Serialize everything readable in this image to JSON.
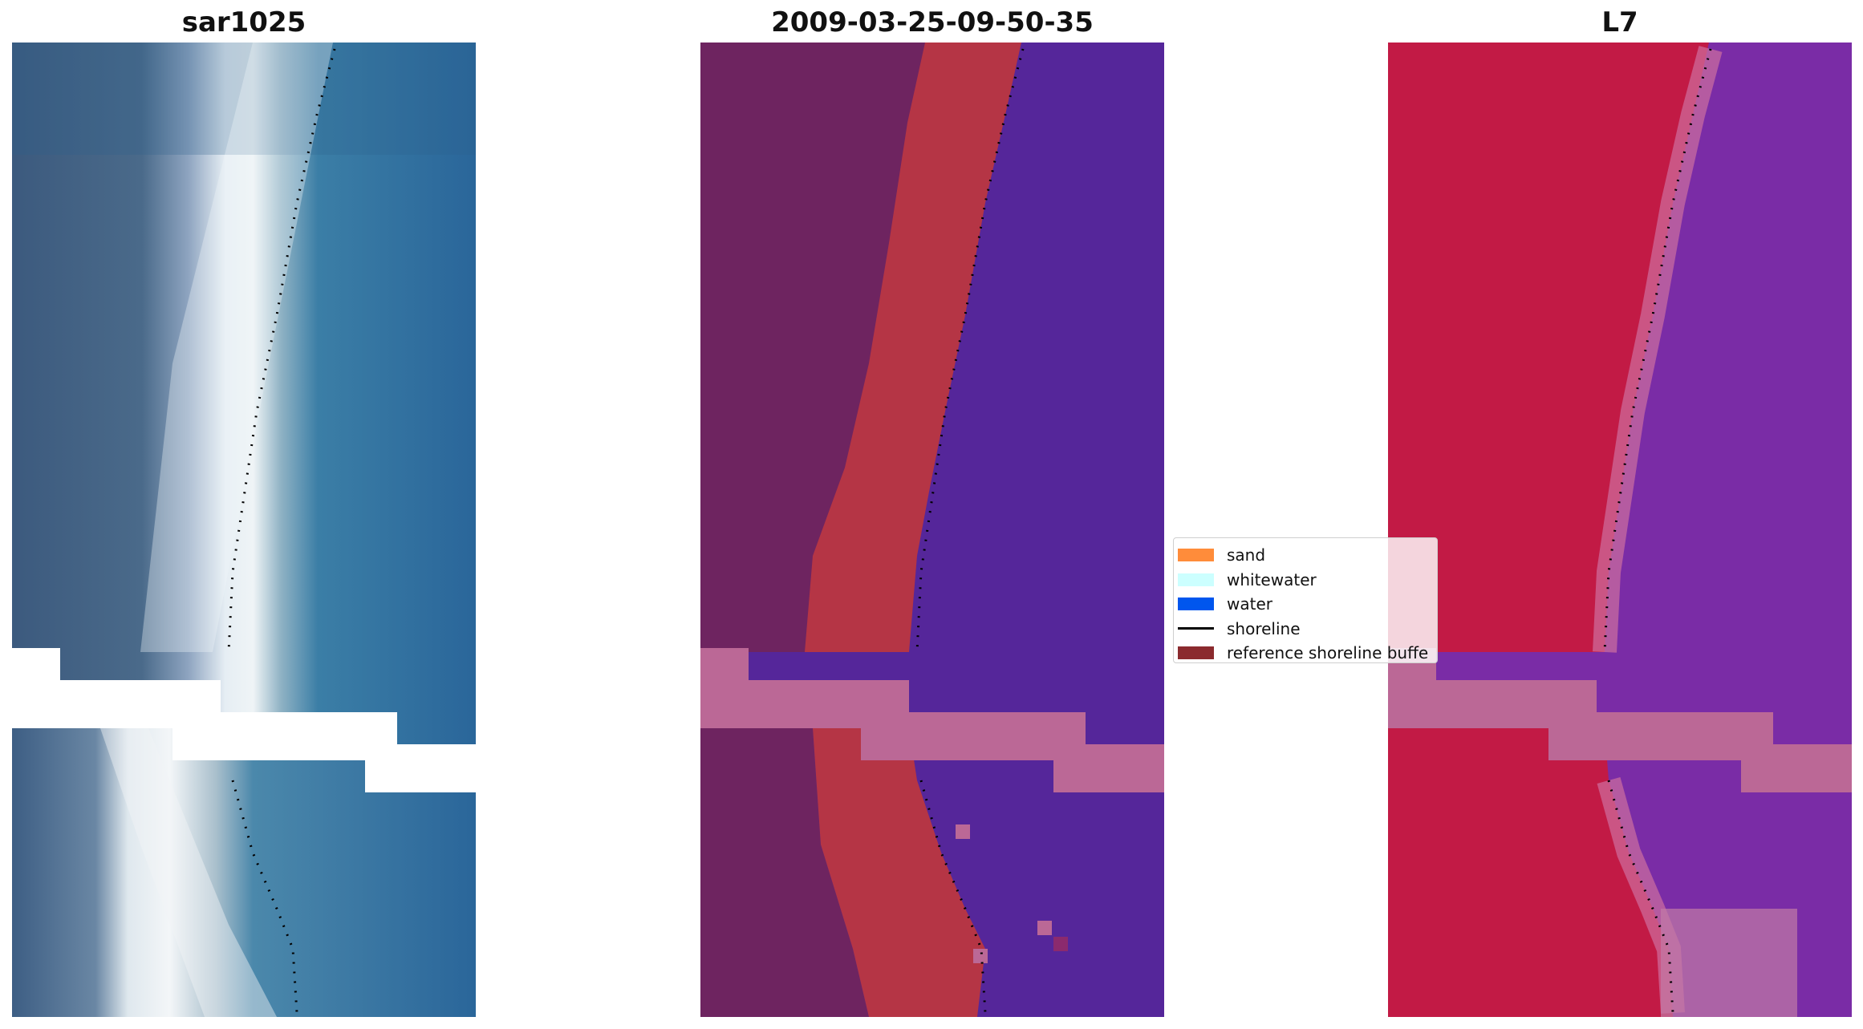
{
  "panels": [
    {
      "title": "sar1025"
    },
    {
      "title": "2009-03-25-09-50-35"
    },
    {
      "title": "L7"
    }
  ],
  "legend": {
    "items": [
      {
        "label": "sand",
        "color": "#ff8c3a"
      },
      {
        "label": "whitewater",
        "color": "#ccffff"
      },
      {
        "label": "water",
        "color": "#0056ee"
      },
      {
        "label": "shoreline",
        "color": "#000000"
      },
      {
        "label": "reference shoreline buffe",
        "color": "#8b2a2e"
      }
    ]
  },
  "colors": {
    "sar_land": "#3a5e82",
    "sar_water": "#2a6a9c",
    "sar_bright": "#eef2f6",
    "class_land": "#6e2460",
    "class_sand": "#b53545",
    "class_water": "#55269a",
    "class_nodata": "#bb6896",
    "l7_land": "#c21a45",
    "l7_water": "#7a2ca6",
    "l7_nodata": "#bb6896"
  }
}
